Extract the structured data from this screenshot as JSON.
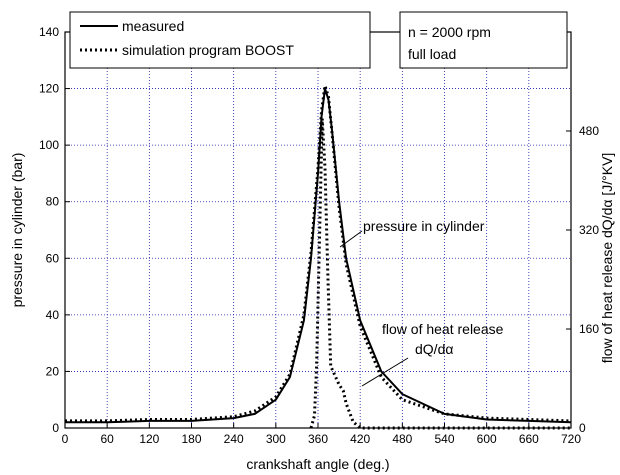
{
  "chart_data": {
    "type": "line",
    "xlabel": "crankshaft angle (deg.)",
    "ylabel_left": "pressure in cylinder (bar)",
    "ylabel_right": "flow of heat release dQ/dα [J/°KV]",
    "xlim": [
      0,
      720
    ],
    "ylim_left": [
      0,
      140
    ],
    "ylim_right": [
      0,
      640
    ],
    "x_ticks": [
      "0",
      "60",
      "120",
      "180",
      "240",
      "300",
      "360",
      "420",
      "480",
      "540",
      "600",
      "660",
      "720"
    ],
    "y_left_ticks": [
      "0",
      "20",
      "40",
      "60",
      "80",
      "100",
      "120",
      "140"
    ],
    "y_right_ticks": [
      "0",
      "160",
      "320",
      "480"
    ],
    "grid": "dotted-blue",
    "legend_position": "top-left",
    "annotation_box": [
      "n = 2000 rpm",
      "full load"
    ],
    "annotations": {
      "pressure": "pressure in cylinder",
      "heat_line1": "flow of heat release",
      "heat_line2": "dQ/dα"
    },
    "series": [
      {
        "name": "measured",
        "axis": "left",
        "style": "solid",
        "x": [
          0,
          60,
          120,
          180,
          240,
          270,
          300,
          320,
          340,
          350,
          360,
          365,
          370,
          375,
          380,
          390,
          400,
          420,
          450,
          480,
          540,
          600,
          660,
          720
        ],
        "y": [
          2,
          2,
          2.5,
          2.5,
          3.5,
          5,
          10,
          18,
          38,
          60,
          90,
          110,
          120,
          116,
          105,
          80,
          60,
          38,
          20,
          12,
          5,
          3,
          2.5,
          2
        ]
      },
      {
        "name": "simulation program BOOST",
        "axis": "left",
        "style": "dotted",
        "x": [
          0,
          60,
          120,
          180,
          240,
          270,
          300,
          320,
          340,
          350,
          360,
          365,
          370,
          375,
          380,
          390,
          400,
          420,
          450,
          480,
          540,
          600,
          660,
          720
        ],
        "y": [
          2.5,
          2.5,
          3,
          3,
          4,
          6,
          11,
          19,
          40,
          62,
          92,
          112,
          121,
          117,
          104,
          78,
          58,
          36,
          18,
          10,
          5,
          3.5,
          3,
          2.5
        ]
      },
      {
        "name": "flow of heat release dQ/dα",
        "axis": "right",
        "style": "dotted",
        "x": [
          350,
          355,
          358,
          362,
          366,
          370,
          374,
          378,
          382,
          386,
          390,
          396,
          400,
          410,
          420,
          430,
          720
        ],
        "y": [
          0,
          20,
          100,
          300,
          500,
          420,
          250,
          100,
          90,
          80,
          70,
          60,
          40,
          10,
          0,
          0,
          0
        ]
      }
    ]
  }
}
